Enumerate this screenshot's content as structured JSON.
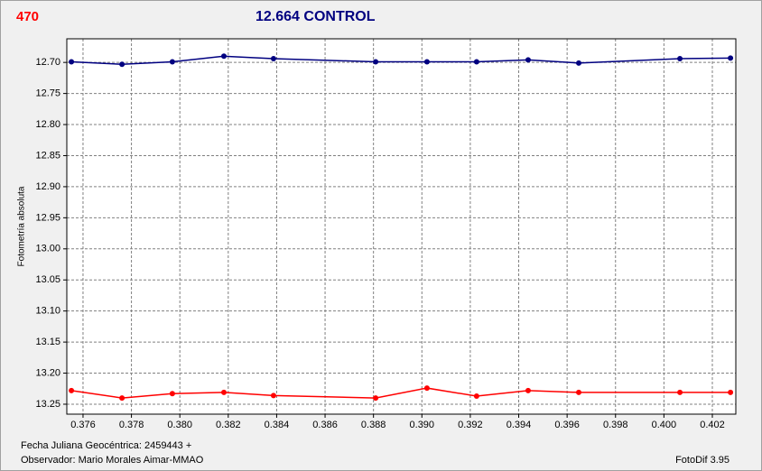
{
  "chart_data": {
    "type": "line",
    "label": "470",
    "title": "12.664 CONTROL",
    "y_label": "Fotometría absoluta",
    "x_label": "Fecha Juliana Geocéntrica: 2459443 +",
    "observer": "Observador: Mario Morales Aimar-MMAO",
    "software": "FotoDif 3.95",
    "x": [
      0.37552,
      0.37761,
      0.37969,
      0.38182,
      0.38387,
      0.38809,
      0.39021,
      0.39226,
      0.39439,
      0.39648,
      0.40066,
      0.40275
    ],
    "series": [
      {
        "color": "#000080",
        "values": [
          12.699,
          12.703,
          12.699,
          12.69,
          12.694,
          12.699,
          12.699,
          12.699,
          12.696,
          12.701,
          12.694,
          12.693
        ]
      },
      {
        "color": "#ff0000",
        "values": [
          13.228,
          13.24,
          13.233,
          13.231,
          13.236,
          13.24,
          13.224,
          13.237,
          13.228,
          13.231,
          13.231,
          13.231
        ]
      }
    ],
    "xlim": [
      0.37533,
      0.40297
    ],
    "xticks": [
      0.376,
      0.378,
      {
        "value": 0.38,
        "label": "0.380"
      },
      0.382,
      0.384,
      0.386,
      0.388,
      {
        "value": 0.39,
        "label": "0.390"
      },
      0.392,
      0.394,
      0.396,
      0.398,
      {
        "value": 0.4,
        "label": "0.400"
      },
      0.402
    ],
    "ylim": [
      12.662,
      13.266
    ],
    "y_inverted": true,
    "yticks": [
      {
        "value": 12.7,
        "label": "12.70"
      },
      {
        "value": 12.75,
        "label": "12.75"
      },
      {
        "value": 12.8,
        "label": "12.80"
      },
      {
        "value": 12.85,
        "label": "12.85"
      },
      {
        "value": 12.9,
        "label": "12.90"
      },
      {
        "value": 12.95,
        "label": "12.95"
      },
      {
        "value": 13.0,
        "label": "13.00"
      },
      {
        "value": 13.05,
        "label": "13.05"
      },
      {
        "value": 13.1,
        "label": "13.10"
      },
      {
        "value": 13.15,
        "label": "13.15"
      },
      {
        "value": 13.2,
        "label": "13.20"
      },
      {
        "value": 13.25,
        "label": "13.25"
      }
    ],
    "grid": true
  }
}
